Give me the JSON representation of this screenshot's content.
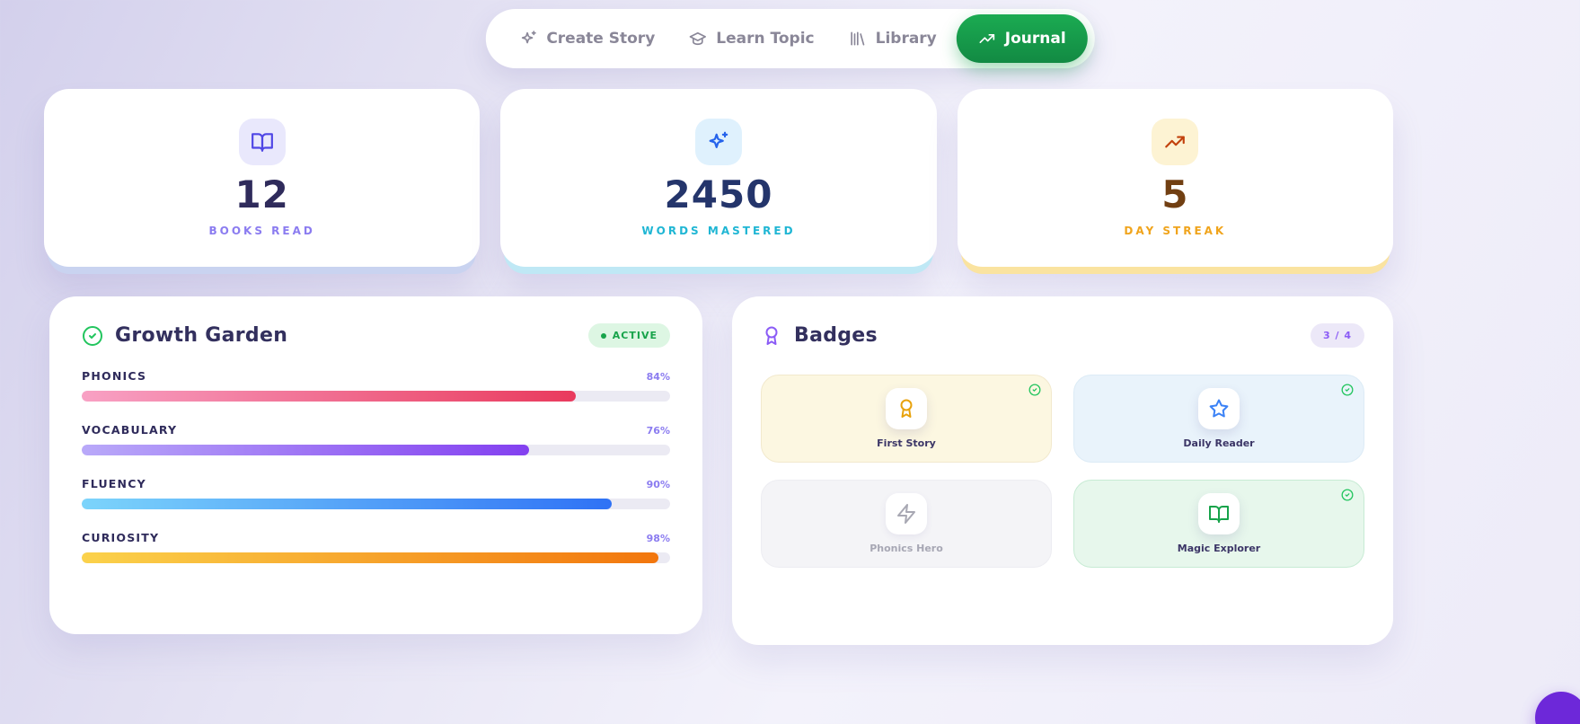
{
  "nav": {
    "items": [
      {
        "label": "Create Story",
        "icon": "sparkles-icon"
      },
      {
        "label": "Learn Topic",
        "icon": "graduation-cap-icon"
      },
      {
        "label": "Library",
        "icon": "library-icon"
      },
      {
        "label": "Journal",
        "icon": "trending-up-icon",
        "active": true
      }
    ]
  },
  "stats": [
    {
      "value": "12",
      "label": "BOOKS READ",
      "icon": "book-open-icon",
      "icon_color": "#4f46e5",
      "icon_bg": "#e9e8fc",
      "value_color": "#2f2b5b",
      "label_color": "#8b7cf0",
      "glow": "#c9d3f0"
    },
    {
      "value": "2450",
      "label": "WORDS MASTERED",
      "icon": "sparkles-icon",
      "icon_color": "#2563eb",
      "icon_bg": "#dff1fd",
      "value_color": "#24356b",
      "label_color": "#1fb6d4",
      "glow": "#bfe8f5"
    },
    {
      "value": "5",
      "label": "DAY STREAK",
      "icon": "trending-up-icon",
      "icon_color": "#c2410c",
      "icon_bg": "#fdf3d3",
      "value_color": "#713f12",
      "label_color": "#f0a41c",
      "glow": "#fae3a0"
    }
  ],
  "growth_garden": {
    "title": "Growth Garden",
    "status": "ACTIVE",
    "skills": [
      {
        "name": "PHONICS",
        "percent": 84,
        "percent_label": "84%",
        "colors": [
          "#f8a1c4",
          "#e93a5d"
        ]
      },
      {
        "name": "VOCABULARY",
        "percent": 76,
        "percent_label": "76%",
        "colors": [
          "#b9a9f9",
          "#8340f0"
        ]
      },
      {
        "name": "FLUENCY",
        "percent": 90,
        "percent_label": "90%",
        "colors": [
          "#7cd4fb",
          "#2f72f5"
        ]
      },
      {
        "name": "CURIOSITY",
        "percent": 98,
        "percent_label": "98%",
        "colors": [
          "#fbd24b",
          "#f2760d"
        ]
      }
    ]
  },
  "badges": {
    "title": "Badges",
    "count": "3 / 4",
    "items": [
      {
        "name": "First Story",
        "icon": "award-icon",
        "earned": true,
        "bg": "#fcf7e1",
        "border": "#f2e9cd",
        "icon_color": "#e8a20c"
      },
      {
        "name": "Daily Reader",
        "icon": "star-icon",
        "earned": true,
        "bg": "#e9f3fb",
        "border": "#dcebf6",
        "icon_color": "#3b82f6"
      },
      {
        "name": "Phonics Hero",
        "icon": "zap-icon",
        "earned": false,
        "bg": "#f4f4f7",
        "border": "#ededf2",
        "icon_color": "#a8a8b3"
      },
      {
        "name": "Magic Explorer",
        "icon": "book-open-icon",
        "earned": true,
        "bg": "#e7f7ec",
        "border": "#c7ebd4",
        "icon_color": "#16a34a"
      }
    ]
  },
  "theme": {
    "journal_green": "#16a34a",
    "check_green": "#22c55e",
    "badge_purple": "#8b5cf6",
    "nav_text": "#8a8798",
    "heading": "#33305e",
    "fab_purple": "#6d28d9"
  }
}
